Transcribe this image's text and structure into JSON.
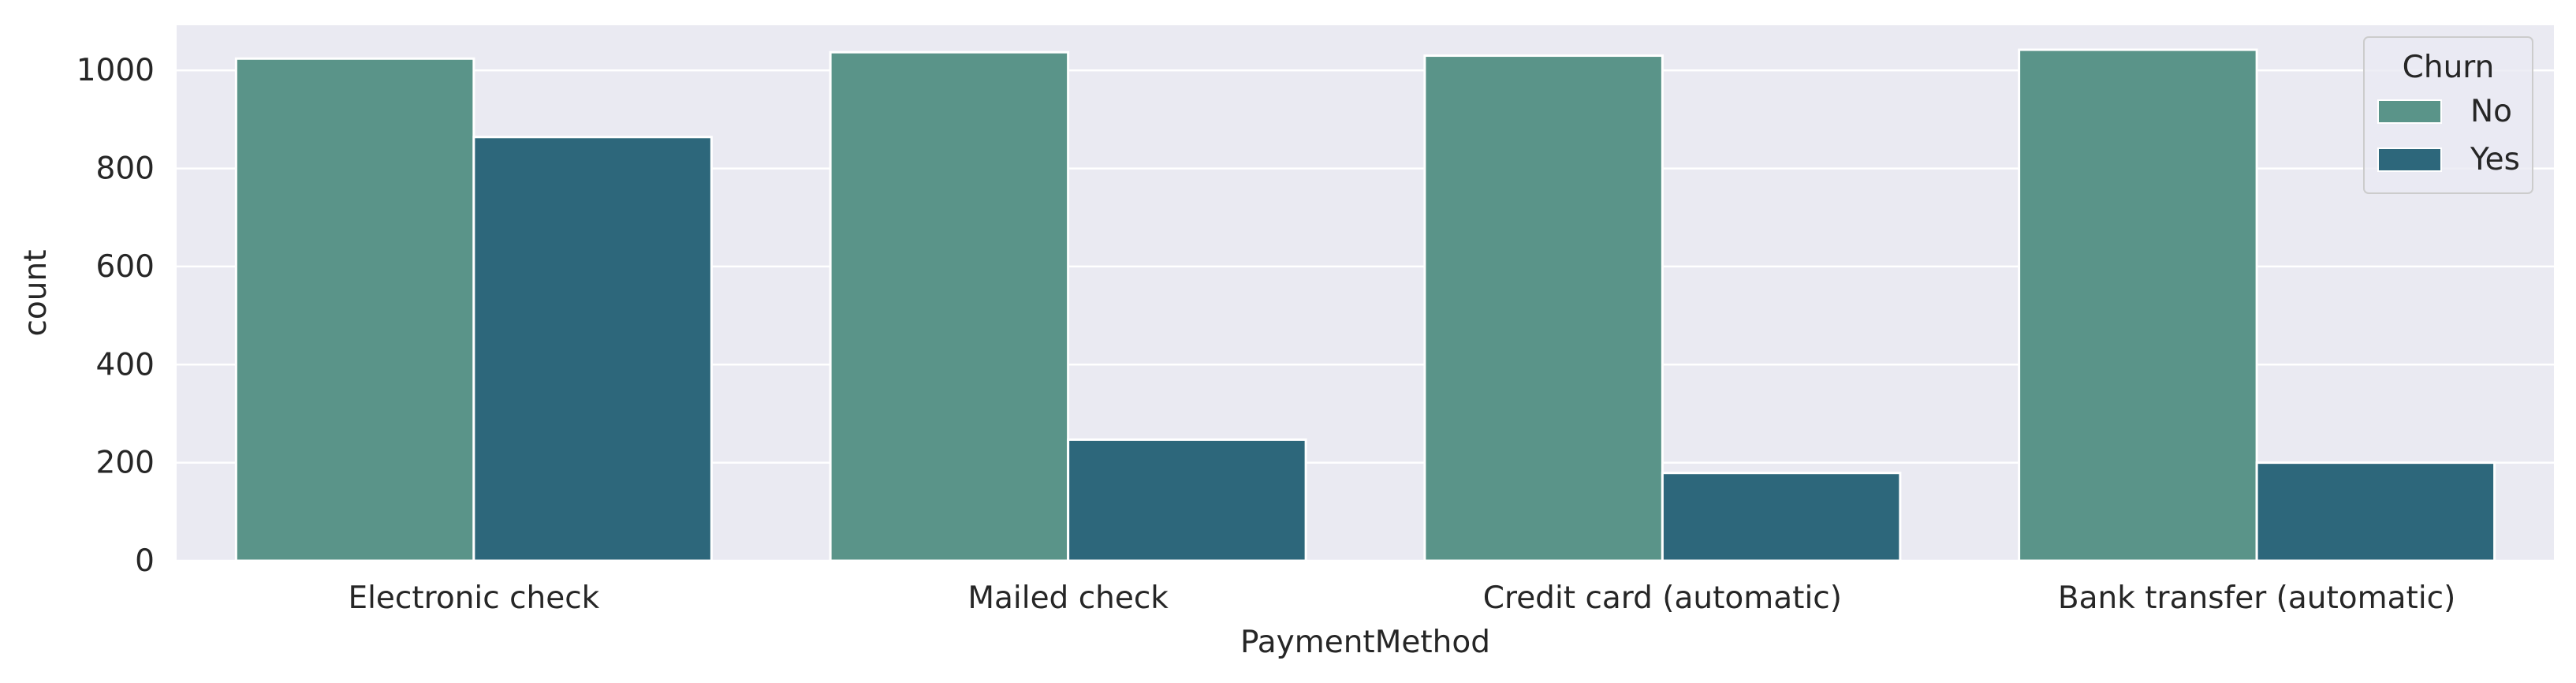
{
  "chart_data": {
    "type": "bar",
    "title": "",
    "xlabel": "PaymentMethod",
    "ylabel": "count",
    "categories": [
      "Electronic check",
      "Mailed check",
      "Credit card (automatic)",
      "Bank transfer (automatic)"
    ],
    "series": [
      {
        "name": "No",
        "values": [
          1024,
          1037,
          1030,
          1042
        ],
        "color": "#5a9489"
      },
      {
        "name": "Yes",
        "values": [
          864,
          247,
          179,
          200
        ],
        "color": "#2d677b"
      }
    ],
    "ylim": [
      0,
      1092
    ],
    "yticks": [
      0,
      200,
      400,
      600,
      800,
      1000
    ],
    "grid": true,
    "legend": {
      "title": "Churn",
      "position": "top-right"
    },
    "background_color": "#eaeaf2",
    "grid_color": "#ffffff"
  }
}
